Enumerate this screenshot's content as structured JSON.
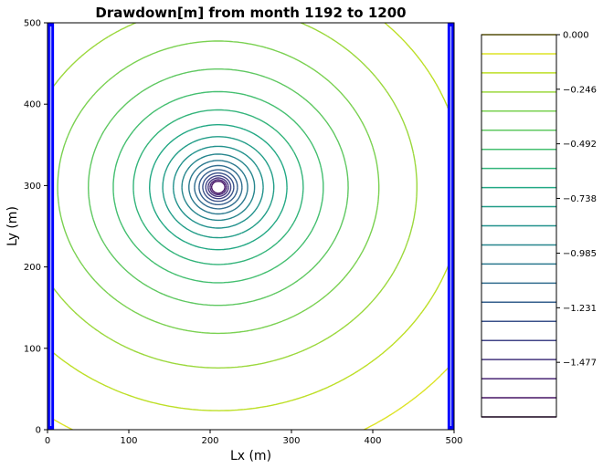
{
  "chart_data": {
    "type": "contour",
    "title": "Drawdown[m] from month 1192 to 1200",
    "xlabel": "Lx (m)",
    "ylabel": "Ly (m)",
    "xlim": [
      0,
      500
    ],
    "ylim": [
      0,
      500
    ],
    "x_ticks": [
      0,
      100,
      200,
      300,
      400,
      500
    ],
    "y_ticks": [
      0,
      100,
      200,
      300,
      400,
      500
    ],
    "center": {
      "x": 210,
      "y": 298
    },
    "colorbar": {
      "range": [
        -1.723,
        0.0
      ],
      "tick_values": [
        0.0,
        -0.246,
        -0.492,
        -0.738,
        -0.985,
        -1.231,
        -1.477
      ],
      "tick_labels": [
        "0.000",
        "−0.246",
        "−0.492",
        "−0.738",
        "−0.985",
        "−1.231",
        "−1.477"
      ],
      "levels": 21,
      "colormap": "viridis"
    },
    "boundaries": {
      "left_x": [
        0,
        8
      ],
      "right_x": [
        492,
        500
      ],
      "color": "#0000ff"
    }
  }
}
